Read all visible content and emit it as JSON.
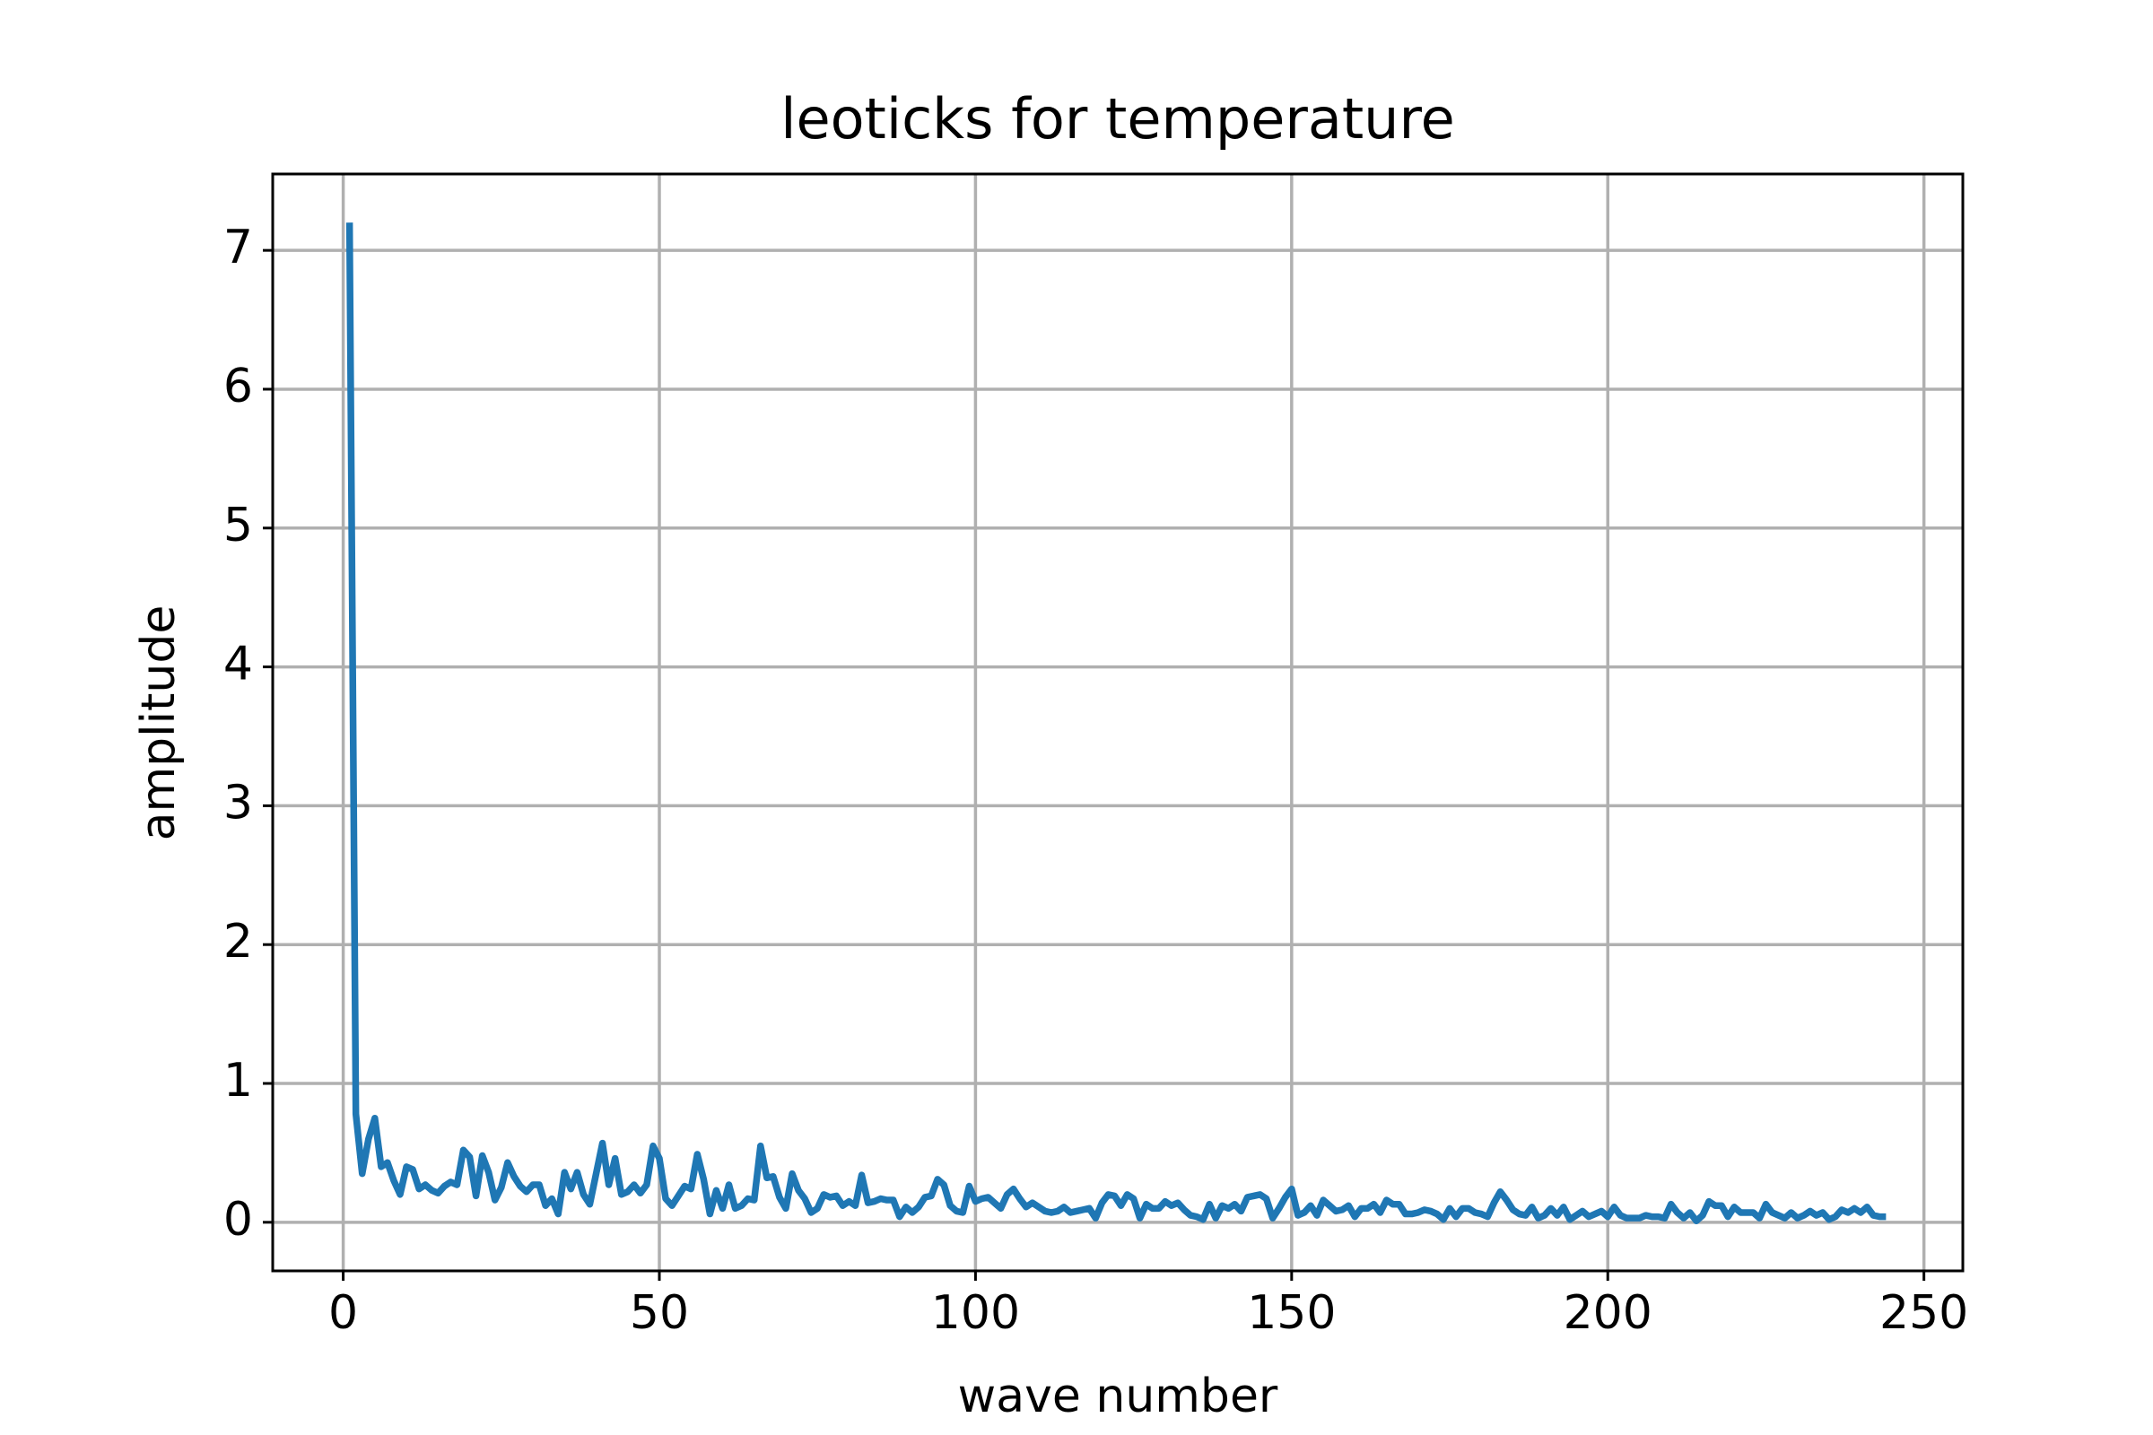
{
  "chart_data": {
    "type": "line",
    "title": "leoticks for temperature",
    "xlabel": "wave number",
    "ylabel": "amplitude",
    "x": [
      1,
      2,
      3,
      4,
      5,
      6,
      7,
      8,
      9,
      10,
      11,
      12,
      13,
      14,
      15,
      16,
      17,
      18,
      19,
      20,
      21,
      22,
      23,
      24,
      25,
      26,
      27,
      28,
      29,
      30,
      31,
      32,
      33,
      34,
      35,
      36,
      37,
      38,
      39,
      40,
      41,
      42,
      43,
      44,
      45,
      46,
      47,
      48,
      49,
      50,
      51,
      52,
      53,
      54,
      55,
      56,
      57,
      58,
      59,
      60,
      61,
      62,
      63,
      64,
      65,
      66,
      67,
      68,
      69,
      70,
      71,
      72,
      73,
      74,
      75,
      76,
      77,
      78,
      79,
      80,
      81,
      82,
      83,
      84,
      85,
      86,
      87,
      88,
      89,
      90,
      91,
      92,
      93,
      94,
      95,
      96,
      97,
      98,
      99,
      100,
      101,
      102,
      103,
      104,
      105,
      106,
      107,
      108,
      109,
      110,
      111,
      112,
      113,
      114,
      115,
      116,
      117,
      118,
      119,
      120,
      121,
      122,
      123,
      124,
      125,
      126,
      127,
      128,
      129,
      130,
      131,
      132,
      133,
      134,
      135,
      136,
      137,
      138,
      139,
      140,
      141,
      142,
      143,
      144,
      145,
      146,
      147,
      148,
      149,
      150,
      151,
      152,
      153,
      154,
      155,
      156,
      157,
      158,
      159,
      160,
      161,
      162,
      163,
      164,
      165,
      166,
      167,
      168,
      169,
      170,
      171,
      172,
      173,
      174,
      175,
      176,
      177,
      178,
      179,
      180,
      181,
      182,
      183,
      184,
      185,
      186,
      187,
      188,
      189,
      190,
      191,
      192,
      193,
      194,
      195,
      196,
      197,
      198,
      199,
      200,
      201,
      202,
      203,
      204,
      205,
      206,
      207,
      208,
      209,
      210,
      211,
      212,
      213,
      214,
      215,
      216,
      217,
      218,
      219,
      220,
      221,
      222,
      223,
      224,
      225,
      226,
      227,
      228,
      229,
      230,
      231,
      232,
      233,
      234,
      235,
      236,
      237,
      238,
      239,
      240,
      241,
      242,
      243,
      244
    ],
    "series": [
      {
        "color": "#1f77b4",
        "values": [
          7.2,
          0.78,
          0.35,
          0.6,
          0.75,
          0.4,
          0.43,
          0.3,
          0.2,
          0.4,
          0.38,
          0.24,
          0.27,
          0.23,
          0.21,
          0.26,
          0.29,
          0.27,
          0.52,
          0.47,
          0.19,
          0.48,
          0.36,
          0.16,
          0.25,
          0.43,
          0.33,
          0.26,
          0.22,
          0.27,
          0.27,
          0.12,
          0.17,
          0.06,
          0.36,
          0.24,
          0.36,
          0.2,
          0.13,
          0.35,
          0.57,
          0.27,
          0.46,
          0.2,
          0.22,
          0.27,
          0.21,
          0.27,
          0.55,
          0.46,
          0.17,
          0.12,
          0.19,
          0.26,
          0.24,
          0.49,
          0.31,
          0.06,
          0.23,
          0.1,
          0.27,
          0.1,
          0.12,
          0.17,
          0.16,
          0.55,
          0.32,
          0.33,
          0.18,
          0.1,
          0.35,
          0.23,
          0.17,
          0.07,
          0.1,
          0.2,
          0.18,
          0.19,
          0.12,
          0.15,
          0.12,
          0.34,
          0.14,
          0.15,
          0.17,
          0.16,
          0.16,
          0.04,
          0.11,
          0.07,
          0.11,
          0.18,
          0.19,
          0.31,
          0.27,
          0.12,
          0.08,
          0.07,
          0.26,
          0.15,
          0.17,
          0.18,
          0.14,
          0.1,
          0.2,
          0.24,
          0.17,
          0.11,
          0.14,
          0.11,
          0.08,
          0.07,
          0.08,
          0.11,
          0.07,
          0.08,
          0.09,
          0.1,
          0.03,
          0.14,
          0.2,
          0.19,
          0.12,
          0.2,
          0.17,
          0.03,
          0.13,
          0.1,
          0.1,
          0.15,
          0.12,
          0.14,
          0.09,
          0.05,
          0.04,
          0.02,
          0.13,
          0.03,
          0.12,
          0.1,
          0.13,
          0.08,
          0.18,
          0.19,
          0.2,
          0.17,
          0.03,
          0.1,
          0.18,
          0.24,
          0.05,
          0.07,
          0.12,
          0.05,
          0.16,
          0.12,
          0.08,
          0.09,
          0.12,
          0.04,
          0.1,
          0.1,
          0.13,
          0.07,
          0.16,
          0.13,
          0.13,
          0.06,
          0.06,
          0.07,
          0.09,
          0.08,
          0.06,
          0.02,
          0.1,
          0.04,
          0.1,
          0.1,
          0.07,
          0.06,
          0.04,
          0.14,
          0.22,
          0.16,
          0.09,
          0.06,
          0.05,
          0.11,
          0.03,
          0.05,
          0.1,
          0.05,
          0.11,
          0.02,
          0.05,
          0.08,
          0.04,
          0.06,
          0.08,
          0.04,
          0.11,
          0.05,
          0.03,
          0.03,
          0.03,
          0.05,
          0.04,
          0.04,
          0.03,
          0.13,
          0.07,
          0.03,
          0.07,
          0.01,
          0.05,
          0.15,
          0.12,
          0.12,
          0.04,
          0.11,
          0.07,
          0.07,
          0.07,
          0.03,
          0.13,
          0.07,
          0.05,
          0.03,
          0.07,
          0.03,
          0.05,
          0.08,
          0.05,
          0.07,
          0.02,
          0.04,
          0.09,
          0.07,
          0.1,
          0.07,
          0.11,
          0.05,
          0.04,
          0.04
        ]
      }
    ],
    "xlim": [
      -11.15,
      256.15
    ],
    "ylim": [
      -0.35,
      7.55
    ],
    "xticks": [
      0,
      50,
      100,
      150,
      200,
      250
    ],
    "yticks": [
      0,
      1,
      2,
      3,
      4,
      5,
      6,
      7
    ],
    "grid": true
  }
}
